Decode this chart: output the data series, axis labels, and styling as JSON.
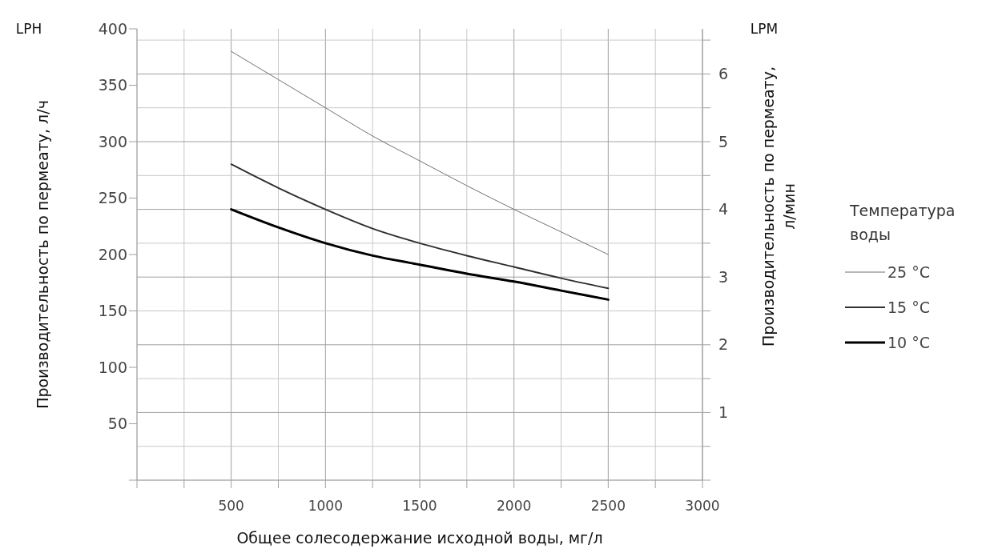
{
  "chart_data": {
    "type": "line",
    "ylabel": "Производительность по пермеату, л/ч",
    "y2label": "Производительность по пермеату, л/мин",
    "xlabel": "Общее солесодержание исходной воды, мг/л",
    "legend_title": "Температура воды",
    "annotations": [
      "LPH",
      "LPM"
    ],
    "x": [
      500,
      750,
      1000,
      1250,
      1500,
      1750,
      2000,
      2250,
      2500
    ],
    "series": [
      {
        "name": "25 °C",
        "color": "#707070",
        "values": [
          380,
          355,
          330,
          305,
          283,
          261,
          240,
          220,
          200
        ]
      },
      {
        "name": "15 °C",
        "color": "#303030",
        "values": [
          280,
          259,
          240,
          223,
          210,
          199,
          189,
          179,
          170
        ]
      },
      {
        "name": "10 °C",
        "color": "#000000",
        "values": [
          240,
          224,
          210,
          199,
          191,
          183,
          176,
          168,
          160
        ]
      }
    ],
    "xlim": [
      0,
      3000
    ],
    "xticks": [
      {
        "value": 0,
        "label": null
      },
      {
        "value": 250,
        "label": null
      },
      500,
      {
        "value": 750,
        "label": null
      },
      1000,
      {
        "value": 1250,
        "label": null
      },
      1500,
      {
        "value": 1750,
        "label": null
      },
      2000,
      {
        "value": 2250,
        "label": null
      },
      2500,
      {
        "value": 2750,
        "label": null
      },
      3000
    ],
    "ylim": [
      0,
      400
    ],
    "yticks": [
      {
        "value": 0,
        "label": null
      },
      50,
      100,
      150,
      200,
      250,
      300,
      350,
      400
    ],
    "y2lim": [
      0,
      6.6667
    ],
    "y2ticks": [
      {
        "value": 0,
        "label": null
      },
      {
        "value": 0.5,
        "label": null
      },
      1,
      {
        "value": 1.5,
        "label": null
      },
      2,
      {
        "value": 2.5,
        "label": null
      },
      3,
      {
        "value": 3.5,
        "label": null
      },
      4,
      {
        "value": 4.5,
        "label": null
      },
      5,
      {
        "value": 5.5,
        "label": null
      },
      6,
      {
        "value": 6.5,
        "label": null
      }
    ],
    "grid": true,
    "legend": "right",
    "marker": "none",
    "line_style": "solid"
  }
}
